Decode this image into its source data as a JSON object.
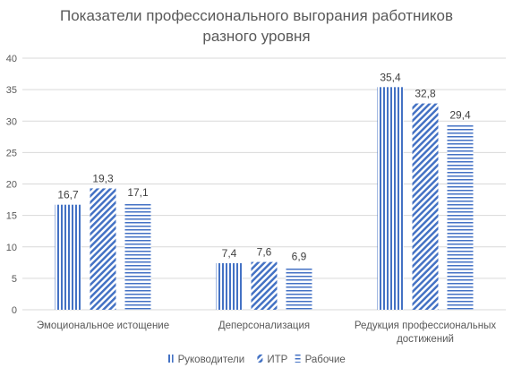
{
  "chart_data": {
    "type": "bar",
    "title_line1": "Показатели профессионального выгорания работников",
    "title_line2": "разного уровня",
    "categories": [
      "Эмоциональное истощение",
      "Деперсонализация",
      "Редукция профессиональных достижений"
    ],
    "series": [
      {
        "name": "Руководители",
        "values": [
          16.7,
          7.4,
          35.4
        ],
        "labels": [
          "16,7",
          "7,4",
          "35,4"
        ],
        "pattern": "vertical-lines"
      },
      {
        "name": "ИТР",
        "values": [
          19.3,
          7.6,
          32.8
        ],
        "labels": [
          "19,3",
          "7,6",
          "32,8"
        ],
        "pattern": "diagonal-lines"
      },
      {
        "name": "Рабочие",
        "values": [
          17.1,
          6.9,
          29.4
        ],
        "labels": [
          "17,1",
          "6,9",
          "29,4"
        ],
        "pattern": "horizontal-lines"
      }
    ],
    "ylim": [
      0,
      40
    ],
    "yticks": [
      0,
      5,
      10,
      15,
      20,
      25,
      30,
      35,
      40
    ],
    "grid": true,
    "legend_position": "bottom",
    "colors": {
      "series": "#4472c4",
      "grid": "#d9d9d9",
      "text": "#595959"
    }
  }
}
